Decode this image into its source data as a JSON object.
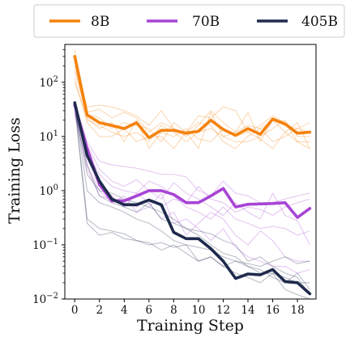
{
  "chart_data": {
    "type": "line",
    "xlabel": "Training Step",
    "ylabel": "Training Loss",
    "yscale": "log",
    "xlim": [
      -0.8,
      19.5
    ],
    "ylim": [
      0.01,
      500
    ],
    "xticks": [
      0,
      2,
      4,
      6,
      8,
      10,
      12,
      14,
      16,
      18
    ],
    "yticks": [
      0.01,
      0.1,
      1,
      10,
      100
    ],
    "ytick_labels": [
      [
        "10",
        "−2"
      ],
      [
        "10",
        "−1"
      ],
      [
        "10",
        "0"
      ],
      [
        "10",
        "1"
      ],
      [
        "10",
        "2"
      ]
    ],
    "legend_position": "top, outside plot",
    "grid": false,
    "x": [
      0,
      1,
      2,
      3,
      4,
      5,
      6,
      7,
      8,
      9,
      10,
      11,
      12,
      13,
      14,
      15,
      16,
      17,
      18,
      19
    ],
    "series": [
      {
        "name": "8B",
        "color": "#f5820d",
        "values": [
          300,
          25,
          18,
          16,
          14,
          18,
          9.5,
          13,
          13,
          11.5,
          12.5,
          20,
          13.5,
          10.5,
          14,
          11,
          21,
          17,
          11.5,
          12
        ],
        "runs": [
          [
            400,
            28,
            32,
            22,
            28,
            22,
            12,
            18,
            14,
            10,
            16,
            30,
            18,
            12,
            16,
            14,
            20,
            16,
            14,
            18
          ],
          [
            250,
            35,
            38,
            35,
            30,
            24,
            16,
            30,
            14,
            12,
            24,
            22,
            35,
            30,
            12,
            16,
            24,
            18,
            8,
            6
          ],
          [
            200,
            20,
            16,
            12,
            10,
            12,
            8,
            16,
            12,
            8,
            12,
            14,
            10,
            8,
            8,
            10,
            14,
            20,
            10,
            10
          ],
          [
            160,
            26,
            22,
            14,
            18,
            16,
            14,
            8,
            18,
            12,
            6,
            28,
            10,
            12,
            28,
            8,
            20,
            12,
            8,
            8
          ],
          [
            120,
            18,
            10,
            10,
            14,
            8,
            10,
            10,
            6,
            12,
            18,
            16,
            8,
            6,
            10,
            14,
            8,
            10,
            14,
            12
          ],
          [
            100,
            22,
            14,
            18,
            8,
            20,
            6,
            12,
            10,
            14,
            9,
            8,
            14,
            10,
            12,
            9,
            6,
            12,
            18,
            6
          ]
        ]
      },
      {
        "name": "70B",
        "color": "#a845d5",
        "values": [
          38,
          6,
          1.3,
          0.65,
          0.65,
          0.8,
          1.0,
          1.0,
          0.85,
          0.6,
          0.6,
          0.8,
          1.1,
          0.5,
          0.56,
          0.57,
          0.58,
          0.6,
          0.32,
          0.47
        ],
        "runs": [
          [
            40,
            8,
            3.5,
            3.0,
            2.8,
            2.6,
            2.3,
            2.0,
            2.0,
            1.8,
            1.0,
            0.8,
            1.5,
            0.9,
            0.8,
            0.6,
            0.6,
            0.7,
            0.8,
            0.9
          ],
          [
            36,
            5,
            2.0,
            1.2,
            1.0,
            0.9,
            1.5,
            1.2,
            0.8,
            0.5,
            0.4,
            0.3,
            0.5,
            0.3,
            0.25,
            0.2,
            0.22,
            0.2,
            0.15,
            0.18
          ],
          [
            30,
            4,
            1.2,
            0.8,
            0.5,
            0.9,
            0.6,
            0.3,
            0.4,
            0.15,
            0.25,
            0.4,
            0.3,
            0.15,
            0.1,
            0.18,
            0.12,
            0.06,
            0.05,
            0.05
          ],
          [
            26,
            3,
            1.0,
            0.6,
            0.8,
            0.4,
            0.5,
            0.9,
            0.25,
            0.3,
            0.2,
            0.12,
            0.2,
            0.09,
            0.06,
            0.05,
            0.04,
            0.04,
            0.03,
            0.035
          ],
          [
            34,
            7,
            2.5,
            1.5,
            1.2,
            1.6,
            1.0,
            0.7,
            1.4,
            0.9,
            0.7,
            0.5,
            0.35,
            0.6,
            0.4,
            0.3,
            0.9,
            0.35,
            0.28,
            0.1
          ],
          [
            28,
            2.5,
            0.8,
            0.7,
            0.6,
            0.5,
            0.7,
            0.5,
            0.7,
            0.6,
            1.2,
            0.7,
            0.6,
            0.4,
            0.5,
            0.45,
            0.35,
            0.5,
            0.6,
            0.7
          ]
        ]
      },
      {
        "name": "405B",
        "color": "#1f2a4d",
        "values": [
          42,
          4.5,
          1.5,
          0.7,
          0.55,
          0.55,
          0.67,
          0.55,
          0.17,
          0.13,
          0.13,
          0.085,
          0.05,
          0.024,
          0.029,
          0.028,
          0.035,
          0.021,
          0.02,
          0.0125
        ],
        "runs": [
          [
            44,
            0.3,
            0.2,
            0.18,
            0.16,
            0.12,
            0.1,
            0.11,
            0.09,
            0.1,
            0.05,
            0.06,
            0.04,
            0.03,
            0.025,
            0.02,
            0.03,
            0.015,
            0.012,
            0.01
          ],
          [
            40,
            1.0,
            0.6,
            0.5,
            0.4,
            0.3,
            0.25,
            0.18,
            0.12,
            0.1,
            0.09,
            0.08,
            0.06,
            0.05,
            0.04,
            0.03,
            0.03,
            0.025,
            0.02,
            0.02
          ],
          [
            38,
            2.0,
            1.0,
            0.9,
            0.7,
            0.6,
            0.5,
            0.4,
            0.3,
            0.2,
            0.18,
            0.16,
            0.12,
            0.1,
            0.05,
            0.06,
            0.04,
            0.03,
            0.025,
            0.012
          ],
          [
            36,
            0.25,
            0.15,
            0.17,
            0.13,
            0.12,
            0.11,
            0.08,
            0.1,
            0.07,
            0.05,
            0.06,
            0.04,
            0.05,
            0.045,
            0.04,
            0.05,
            0.06,
            0.045,
            0.05
          ],
          [
            45,
            3.0,
            0.8,
            0.6,
            0.5,
            0.4,
            0.6,
            0.3,
            0.25,
            0.2,
            0.15,
            0.1,
            0.07,
            0.06,
            0.04,
            0.035,
            0.025,
            0.02,
            0.03,
            0.015
          ]
        ]
      }
    ]
  }
}
